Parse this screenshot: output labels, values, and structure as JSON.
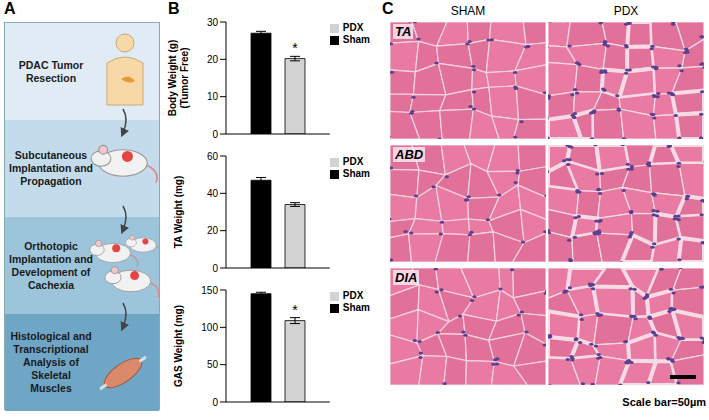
{
  "panel_a": {
    "label": "A",
    "steps": [
      "PDAC Tumor Resection",
      "Subcutaneous Implantation and Propagation",
      "Orthotopic Implantation and Development of Cachexia",
      "Histological and Transcriptional Analysis of Skeletal Muscles"
    ]
  },
  "panel_b_label": "B",
  "chart_data": [
    {
      "type": "bar",
      "ylabel": [
        "Body Weight (g)",
        "(Tumor Free)"
      ],
      "categories": [
        null
      ],
      "ylim": [
        0,
        30
      ],
      "yticks": [
        0,
        10,
        20,
        30
      ],
      "legend": "top-right",
      "tick_labels": "y",
      "series": [
        {
          "name": "Sham",
          "color": "#000000",
          "values": [
            27
          ],
          "error": [
            0.5
          ]
        },
        {
          "name": "PDX",
          "color": "#d3d3d3",
          "values": [
            20.2
          ],
          "error": [
            0.6
          ],
          "annotation": "*"
        }
      ]
    },
    {
      "type": "bar",
      "ylabel": [
        "TA Weight (mg)"
      ],
      "categories": [
        null
      ],
      "ylim": [
        0,
        60
      ],
      "yticks": [
        0,
        20,
        40,
        60
      ],
      "legend": "top-right",
      "tick_labels": "y",
      "series": [
        {
          "name": "Sham",
          "color": "#000000",
          "values": [
            47
          ],
          "error": [
            1.5
          ]
        },
        {
          "name": "PDX",
          "color": "#d3d3d3",
          "values": [
            34
          ],
          "error": [
            1
          ]
        }
      ]
    },
    {
      "type": "bar",
      "ylabel": [
        "GAS Weight (mg)"
      ],
      "categories": [
        null
      ],
      "ylim": [
        0,
        150
      ],
      "yticks": [
        0,
        50,
        100,
        150
      ],
      "legend": "top-right",
      "tick_labels": "y",
      "series": [
        {
          "name": "Sham",
          "color": "#000000",
          "values": [
            145
          ],
          "error": [
            2
          ]
        },
        {
          "name": "PDX",
          "color": "#d3d3d3",
          "values": [
            109
          ],
          "error": [
            4
          ],
          "annotation": "*"
        }
      ]
    }
  ],
  "panel_c": {
    "label": "C",
    "columns": [
      "SHAM",
      "PDX"
    ],
    "rows": [
      "TA",
      "ABD",
      "DIA"
    ],
    "scale_bar": "Scale bar=50µm"
  }
}
